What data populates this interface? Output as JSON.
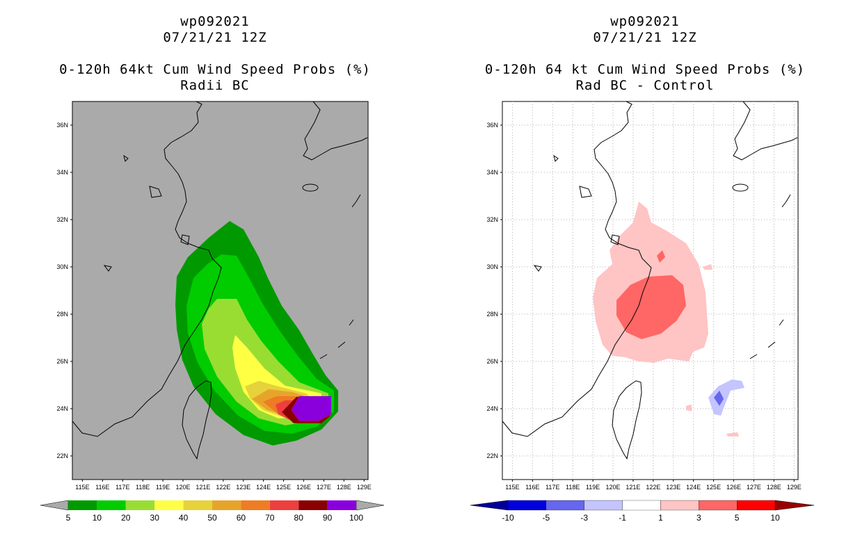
{
  "left": {
    "title_line1": "wp092021",
    "title_line2": "07/21/21 12Z",
    "title_line3": "0-120h 64kt Cum Wind Speed Probs (%)",
    "title_line4": "Radii BC"
  },
  "right": {
    "title_line1": "wp092021",
    "title_line2": "07/21/21 12Z",
    "title_line3": "0-120h 64 kt Cum Wind Speed Probs (%)",
    "title_line4": "Rad BC - Control"
  },
  "map": {
    "lat_labels": [
      "36N",
      "34N",
      "32N",
      "30N",
      "28N",
      "26N",
      "24N",
      "22N"
    ],
    "lat_values": [
      36,
      34,
      32,
      30,
      28,
      26,
      24,
      22
    ],
    "lon_labels": [
      "115E",
      "116E",
      "117E",
      "118E",
      "119E",
      "120E",
      "121E",
      "122E",
      "123E",
      "124E",
      "125E",
      "126E",
      "127E",
      "128E",
      "129E"
    ],
    "lon_values": [
      115,
      116,
      117,
      118,
      119,
      120,
      121,
      122,
      123,
      124,
      125,
      126,
      127,
      128,
      129
    ],
    "lon_range": [
      114.5,
      129.2
    ],
    "lat_range": [
      21.0,
      37.0
    ]
  },
  "colorbar_left": {
    "labels": [
      "5",
      "10",
      "20",
      "30",
      "40",
      "50",
      "60",
      "70",
      "80",
      "90",
      "100"
    ],
    "colors": [
      "#009a00",
      "#00cc00",
      "#99dd33",
      "#ffff44",
      "#e6d23a",
      "#e6a52a",
      "#ee7c23",
      "#ee3f3f",
      "#8a0000",
      "#8a00dd"
    ],
    "end_color": "#aaaaaa"
  },
  "colorbar_right": {
    "labels": [
      "-10",
      "-5",
      "-3",
      "-1",
      "1",
      "3",
      "5",
      "10"
    ],
    "colors": [
      "#0000dd",
      "#6666ee",
      "#c4c4ff",
      "#ffffff",
      "#ffc4c4",
      "#ff6666",
      "#ff0000"
    ],
    "under_color": "#000099",
    "over_color": "#990000"
  },
  "legend": {
    "left_probabilities": [
      5,
      10,
      20,
      30,
      40,
      50,
      60,
      70,
      80,
      90,
      100
    ],
    "right_differences": [
      -10,
      -5,
      -3,
      -1,
      1,
      3,
      5,
      10
    ]
  }
}
